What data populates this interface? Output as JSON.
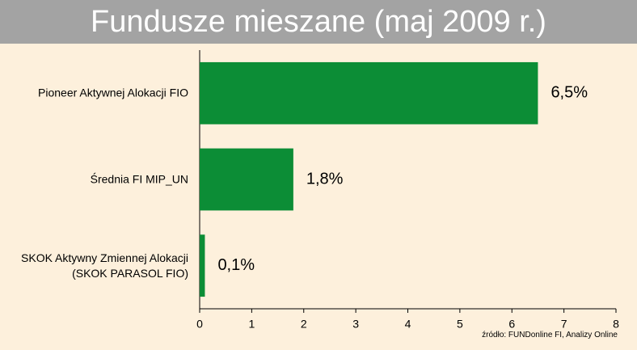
{
  "chart_data": {
    "type": "bar",
    "orientation": "horizontal",
    "title": "Fundusze mieszane (maj 2009 r.)",
    "categories": [
      "Pioneer Aktywnej Alokacji FIO",
      "Średnia FI MIP_UN",
      "SKOK Aktywny Zmiennej Alokacji (SKOK PARASOL FIO)"
    ],
    "values": [
      6.5,
      1.8,
      0.1
    ],
    "value_labels": [
      "6,5%",
      "1,8%",
      "0,1%"
    ],
    "color": "#0c8d36",
    "xlim": [
      0,
      8
    ],
    "xticks": [
      0,
      1,
      2,
      3,
      4,
      5,
      6,
      7,
      8
    ],
    "source": "źródło: FUNDonline FI, Analizy Online"
  }
}
